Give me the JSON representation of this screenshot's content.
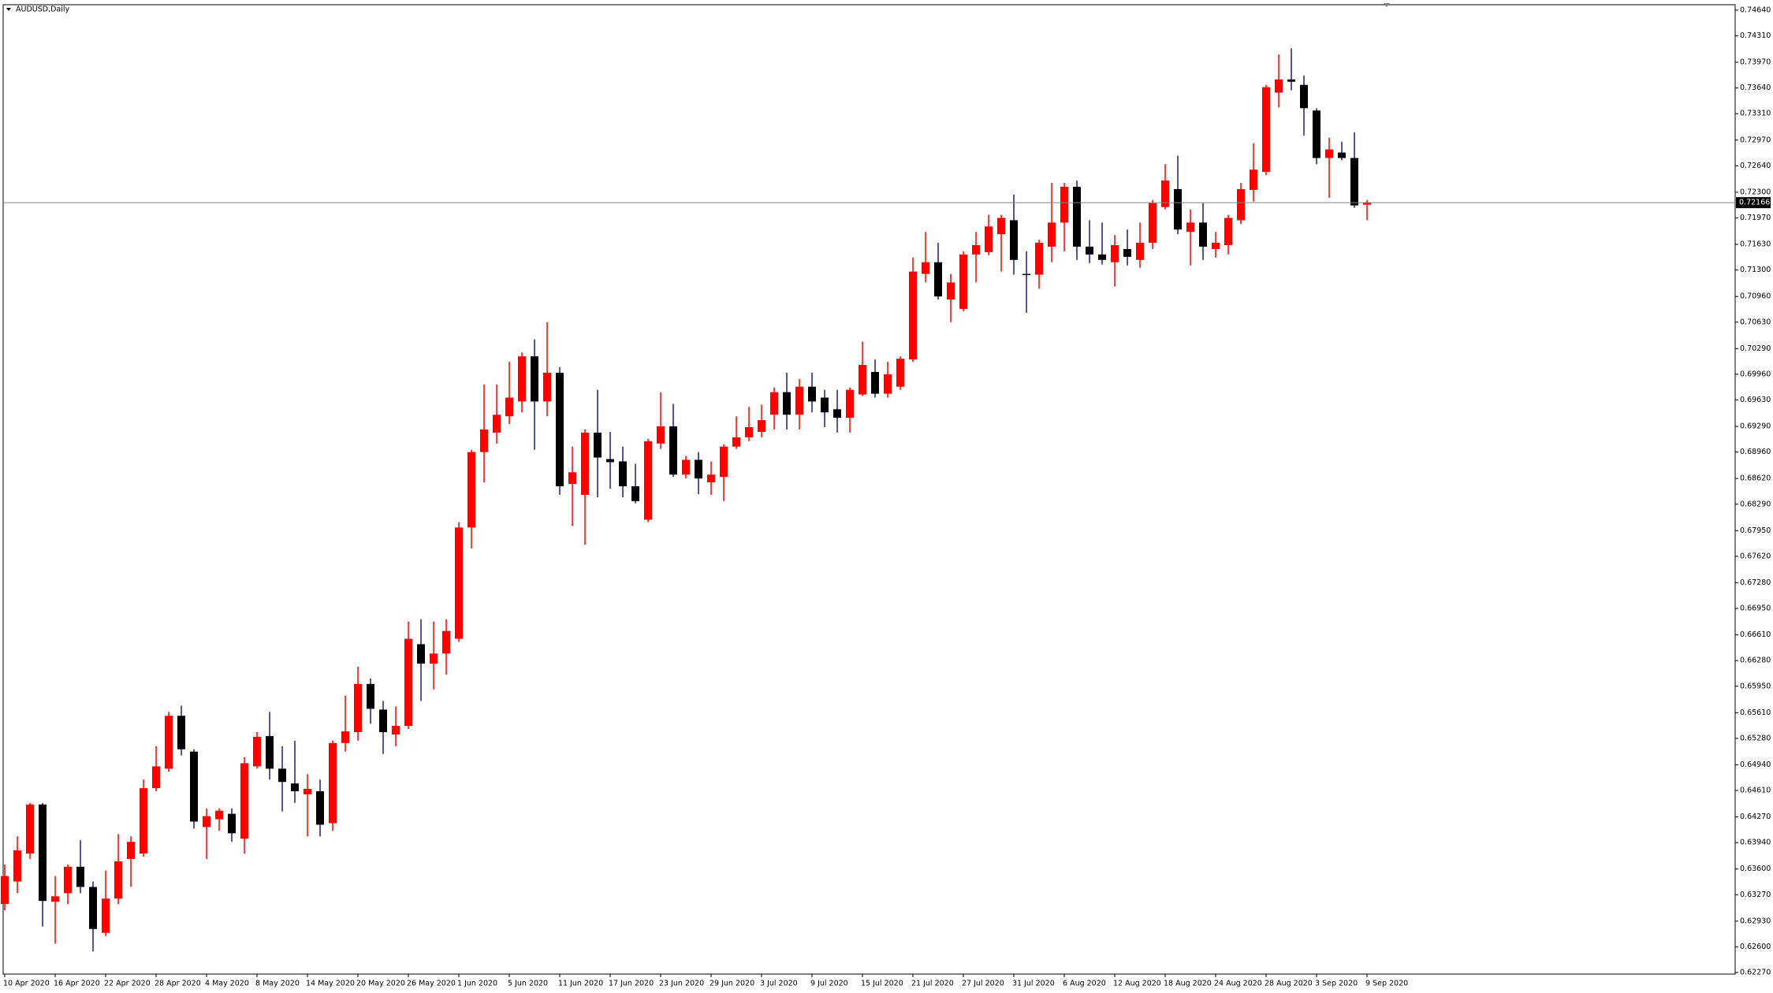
{
  "chart_data": {
    "type": "candlestick",
    "title": "AUDUSD,Daily",
    "categories": [
      "10 Apr 2020",
      null,
      null,
      null,
      "16 Apr 2020",
      null,
      null,
      null,
      "22 Apr 2020",
      null,
      null,
      null,
      "28 Apr 2020",
      null,
      null,
      null,
      "4 May 2020",
      null,
      null,
      null,
      "8 May 2020",
      null,
      null,
      null,
      "14 May 2020",
      null,
      null,
      null,
      "20 May 2020",
      null,
      null,
      null,
      "26 May 2020",
      null,
      null,
      null,
      "1 Jun 2020",
      null,
      null,
      null,
      "5 Jun 2020",
      null,
      null,
      null,
      "11 Jun 2020",
      null,
      null,
      null,
      "17 Jun 2020",
      null,
      null,
      null,
      "23 Jun 2020",
      null,
      null,
      null,
      "29 Jun 2020",
      null,
      null,
      null,
      "3 Jul 2020",
      null,
      null,
      null,
      "9 Jul 2020",
      null,
      null,
      null,
      "15 Jul 2020",
      null,
      null,
      null,
      "21 Jul 2020",
      null,
      null,
      null,
      "27 Jul 2020",
      null,
      null,
      null,
      "31 Jul 2020",
      null,
      null,
      null,
      "6 Aug 2020",
      null,
      null,
      null,
      "12 Aug 2020",
      null,
      null,
      null,
      "18 Aug 2020",
      null,
      null,
      null,
      "24 Aug 2020",
      null,
      null,
      null,
      "28 Aug 2020",
      null,
      null,
      null,
      "3 Sep 2020",
      null,
      null,
      null,
      "9 Sep 2020"
    ],
    "open": [
      0.6315,
      0.6344,
      0.638,
      0.6443,
      0.6318,
      0.6329,
      0.6363,
      0.6337,
      0.6278,
      0.6322,
      0.6373,
      0.638,
      0.6464,
      0.6489,
      0.6557,
      0.6511,
      0.6414,
      0.6424,
      0.6431,
      0.6399,
      0.6492,
      0.6531,
      0.6489,
      0.647,
      0.6456,
      0.646,
      0.6419,
      0.6522,
      0.6536,
      0.6598,
      0.6565,
      0.6533,
      0.6544,
      0.6649,
      0.6624,
      0.6637,
      0.6656,
      0.6799,
      0.6896,
      0.6921,
      0.6942,
      0.6961,
      0.7019,
      0.6961,
      0.6998,
      0.6855,
      0.6841,
      0.6921,
      0.6887,
      0.6884,
      0.6852,
      0.6809,
      0.6907,
      0.6929,
      0.6867,
      0.6886,
      0.6857,
      0.6864,
      0.6903,
      0.6915,
      0.6922,
      0.6944,
      0.6973,
      0.6944,
      0.698,
      0.6966,
      0.6951,
      0.694,
      0.697,
      0.6999,
      0.6971,
      0.698,
      0.7015,
      0.7125,
      0.714,
      0.7092,
      0.708,
      0.715,
      0.7153,
      0.7176,
      0.7194,
      0.7125,
      0.7124,
      0.716,
      0.7191,
      0.7237,
      0.716,
      0.715,
      0.714,
      0.7157,
      0.7143,
      0.7165,
      0.7211,
      0.7234,
      0.7179,
      0.7191,
      0.7157,
      0.7162,
      0.7194,
      0.7233,
      0.7256,
      0.7358,
      0.7375,
      0.7368,
      0.7335,
      0.7274,
      0.7281,
      0.7274,
      0.7214
    ],
    "high": [
      0.6366,
      0.6402,
      0.6445,
      0.6445,
      0.6351,
      0.6366,
      0.6397,
      0.6344,
      0.6358,
      0.6405,
      0.6402,
      0.6475,
      0.6518,
      0.6562,
      0.657,
      0.6514,
      0.6438,
      0.6438,
      0.6438,
      0.6504,
      0.6536,
      0.6562,
      0.6518,
      0.6525,
      0.6482,
      0.6475,
      0.6525,
      0.6583,
      0.662,
      0.6605,
      0.6576,
      0.6569,
      0.6678,
      0.6681,
      0.6678,
      0.6681,
      0.6806,
      0.6899,
      0.6983,
      0.6983,
      0.7012,
      0.7024,
      0.7041,
      0.7063,
      0.7005,
      0.6903,
      0.6925,
      0.6976,
      0.6922,
      0.6903,
      0.6881,
      0.6913,
      0.6973,
      0.6958,
      0.6891,
      0.6896,
      0.6884,
      0.6906,
      0.6942,
      0.6954,
      0.6957,
      0.6979,
      0.6998,
      0.699,
      0.6998,
      0.6976,
      0.6976,
      0.6979,
      0.7038,
      0.7015,
      0.7012,
      0.7019,
      0.7146,
      0.7179,
      0.7165,
      0.7125,
      0.7154,
      0.7179,
      0.7201,
      0.7201,
      0.7227,
      0.7154,
      0.7169,
      0.7242,
      0.7242,
      0.7245,
      0.7194,
      0.7191,
      0.7175,
      0.7182,
      0.7191,
      0.722,
      0.7266,
      0.7277,
      0.7208,
      0.7216,
      0.7179,
      0.7201,
      0.7242,
      0.7293,
      0.7368,
      0.7407,
      0.7415,
      0.738,
      0.7338,
      0.73,
      0.7295,
      0.7307,
      0.722
    ],
    "low": [
      0.6307,
      0.6329,
      0.6373,
      0.6286,
      0.6264,
      0.6315,
      0.6329,
      0.6254,
      0.6274,
      0.6315,
      0.6337,
      0.6376,
      0.646,
      0.6485,
      0.6506,
      0.6412,
      0.6373,
      0.6409,
      0.6395,
      0.638,
      0.6489,
      0.6475,
      0.6434,
      0.6445,
      0.6402,
      0.6402,
      0.6409,
      0.6511,
      0.6525,
      0.6547,
      0.6508,
      0.6518,
      0.654,
      0.6576,
      0.6591,
      0.661,
      0.6652,
      0.6772,
      0.6857,
      0.6907,
      0.6932,
      0.6947,
      0.6899,
      0.6942,
      0.6841,
      0.6801,
      0.6777,
      0.6838,
      0.6849,
      0.6838,
      0.683,
      0.6806,
      0.69,
      0.6864,
      0.6862,
      0.6842,
      0.6841,
      0.6833,
      0.69,
      0.691,
      0.6915,
      0.6925,
      0.6925,
      0.6925,
      0.6947,
      0.6928,
      0.6921,
      0.6921,
      0.6968,
      0.6966,
      0.6966,
      0.6976,
      0.7012,
      0.7114,
      0.7092,
      0.7063,
      0.7077,
      0.7114,
      0.7149,
      0.7128,
      0.7124,
      0.7075,
      0.7106,
      0.714,
      0.7154,
      0.7143,
      0.7139,
      0.7137,
      0.7109,
      0.7136,
      0.7133,
      0.7157,
      0.7208,
      0.7176,
      0.7136,
      0.7143,
      0.7146,
      0.715,
      0.7189,
      0.7218,
      0.7252,
      0.7339,
      0.7361,
      0.7303,
      0.7266,
      0.7223,
      0.7271,
      0.721,
      0.7194
    ],
    "close": [
      0.6351,
      0.6384,
      0.6443,
      0.6319,
      0.6325,
      0.6363,
      0.6337,
      0.6283,
      0.6322,
      0.637,
      0.6395,
      0.6464,
      0.6492,
      0.6557,
      0.6514,
      0.6421,
      0.6428,
      0.6435,
      0.6406,
      0.6496,
      0.653,
      0.6489,
      0.6472,
      0.646,
      0.6463,
      0.6417,
      0.6522,
      0.6537,
      0.6598,
      0.6566,
      0.6536,
      0.6544,
      0.6656,
      0.6624,
      0.6637,
      0.6666,
      0.6799,
      0.6896,
      0.6925,
      0.6944,
      0.6966,
      0.7019,
      0.6961,
      0.6998,
      0.6852,
      0.687,
      0.6921,
      0.6889,
      0.6883,
      0.6852,
      0.6833,
      0.691,
      0.6929,
      0.6867,
      0.6886,
      0.6862,
      0.6867,
      0.6903,
      0.6915,
      0.6928,
      0.6937,
      0.6973,
      0.6944,
      0.698,
      0.6961,
      0.6947,
      0.694,
      0.6976,
      0.7008,
      0.6971,
      0.6996,
      0.7016,
      0.7128,
      0.714,
      0.7096,
      0.7114,
      0.715,
      0.7162,
      0.7186,
      0.7197,
      0.7143,
      0.7124,
      0.7165,
      0.7191,
      0.7237,
      0.716,
      0.715,
      0.7143,
      0.7162,
      0.7147,
      0.7165,
      0.7216,
      0.7245,
      0.7182,
      0.7191,
      0.716,
      0.7165,
      0.7197,
      0.7234,
      0.7259,
      0.7365,
      0.7375,
      0.7372,
      0.7338,
      0.7274,
      0.7285,
      0.7274,
      0.7213,
      0.7217
    ],
    "up_color": "#ff0000",
    "down_color": "#000000",
    "down_wick_color": "#1c1c90",
    "current_price": 0.72166,
    "current_price_color": "#808080",
    "ylim": [
      0.6225,
      0.7471
    ],
    "yticks": [
      {
        "value": 0.7464,
        "label": "0.74640"
      },
      {
        "value": 0.7431,
        "label": "0.74310"
      },
      {
        "value": 0.7397,
        "label": "0.73970"
      },
      {
        "value": 0.7364,
        "label": "0.73640"
      },
      {
        "value": 0.7331,
        "label": "0.73310"
      },
      {
        "value": 0.7297,
        "label": "0.72970"
      },
      {
        "value": 0.7264,
        "label": "0.72640"
      },
      {
        "value": 0.723,
        "label": "0.72300"
      },
      {
        "value": 0.7197,
        "label": "0.71970"
      },
      {
        "value": 0.7163,
        "label": "0.71630"
      },
      {
        "value": 0.713,
        "label": "0.71300"
      },
      {
        "value": 0.7096,
        "label": "0.70960"
      },
      {
        "value": 0.7063,
        "label": "0.70630"
      },
      {
        "value": 0.7029,
        "label": "0.70290"
      },
      {
        "value": 0.6996,
        "label": "0.69960"
      },
      {
        "value": 0.6963,
        "label": "0.69630"
      },
      {
        "value": 0.6929,
        "label": "0.69290"
      },
      {
        "value": 0.6896,
        "label": "0.68960"
      },
      {
        "value": 0.6862,
        "label": "0.68620"
      },
      {
        "value": 0.6829,
        "label": "0.68290"
      },
      {
        "value": 0.6795,
        "label": "0.67950"
      },
      {
        "value": 0.6762,
        "label": "0.67620"
      },
      {
        "value": 0.6728,
        "label": "0.67280"
      },
      {
        "value": 0.6695,
        "label": "0.66950"
      },
      {
        "value": 0.6661,
        "label": "0.66610"
      },
      {
        "value": 0.6628,
        "label": "0.66280"
      },
      {
        "value": 0.6595,
        "label": "0.65950"
      },
      {
        "value": 0.6561,
        "label": "0.65610"
      },
      {
        "value": 0.6528,
        "label": "0.65280"
      },
      {
        "value": 0.6494,
        "label": "0.64940"
      },
      {
        "value": 0.6461,
        "label": "0.64610"
      },
      {
        "value": 0.6427,
        "label": "0.64270"
      },
      {
        "value": 0.6394,
        "label": "0.63940"
      },
      {
        "value": 0.636,
        "label": "0.63600"
      },
      {
        "value": 0.6327,
        "label": "0.63270"
      },
      {
        "value": 0.6293,
        "label": "0.62930"
      },
      {
        "value": 0.626,
        "label": "0.62600"
      },
      {
        "value": 0.6227,
        "label": "0.62270"
      }
    ]
  }
}
